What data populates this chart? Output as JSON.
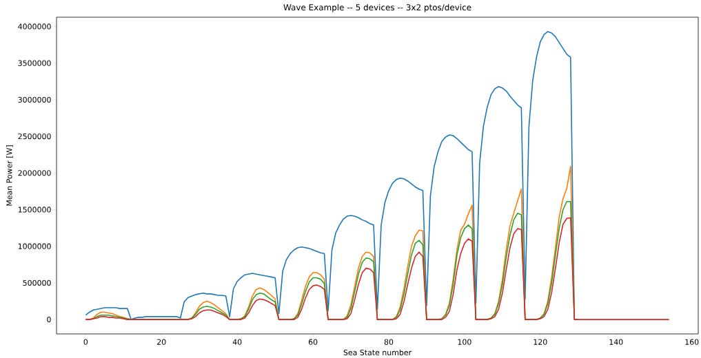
{
  "chart_data": {
    "type": "line",
    "title": "Wave Example -- 5 devices -- 3x2 ptos/device",
    "xlabel": "Sea State number",
    "ylabel": "Mean Power [W]",
    "x": [
      0,
      1,
      2,
      3,
      4,
      5,
      6,
      7,
      8,
      9,
      10,
      11,
      12,
      13,
      14,
      15,
      16,
      17,
      18,
      19,
      20,
      21,
      22,
      23,
      24,
      25,
      26,
      27,
      28,
      29,
      30,
      31,
      32,
      33,
      34,
      35,
      36,
      37,
      38,
      39,
      40,
      41,
      42,
      43,
      44,
      45,
      46,
      47,
      48,
      49,
      50,
      51,
      52,
      53,
      54,
      55,
      56,
      57,
      58,
      59,
      60,
      61,
      62,
      63,
      64,
      65,
      66,
      67,
      68,
      69,
      70,
      71,
      72,
      73,
      74,
      75,
      76,
      77,
      78,
      79,
      80,
      81,
      82,
      83,
      84,
      85,
      86,
      87,
      88,
      89,
      90,
      91,
      92,
      93,
      94,
      95,
      96,
      97,
      98,
      99,
      100,
      101,
      102,
      103,
      104,
      105,
      106,
      107,
      108,
      109,
      110,
      111,
      112,
      113,
      114,
      115,
      116,
      117,
      118,
      119,
      120,
      121,
      122,
      123,
      124,
      125,
      126,
      127,
      128,
      129,
      130,
      131,
      132,
      133,
      134,
      135,
      136,
      137,
      138,
      139,
      140,
      141,
      142,
      143,
      144,
      145,
      146,
      147,
      148,
      149,
      150,
      151,
      152,
      153,
      154
    ],
    "xlim": [
      -7.7,
      161.7
    ],
    "xticks": [
      0,
      20,
      40,
      60,
      80,
      100,
      120,
      140,
      160
    ],
    "ylim": [
      -196500,
      4126500
    ],
    "yticks": [
      0,
      500000,
      1000000,
      1500000,
      2000000,
      2500000,
      3000000,
      3500000,
      4000000
    ],
    "series": [
      {
        "color": "#1f77b4",
        "values": [
          60000,
          100000,
          130000,
          140000,
          150000,
          160000,
          160000,
          160000,
          160000,
          150000,
          150000,
          150000,
          0,
          20000,
          30000,
          30000,
          40000,
          40000,
          40000,
          40000,
          40000,
          40000,
          40000,
          40000,
          40000,
          20000,
          240000,
          300000,
          320000,
          340000,
          350000,
          360000,
          350000,
          350000,
          340000,
          330000,
          330000,
          320000,
          40000,
          420000,
          520000,
          570000,
          610000,
          620000,
          630000,
          620000,
          610000,
          600000,
          590000,
          580000,
          570000,
          80000,
          660000,
          820000,
          900000,
          950000,
          980000,
          990000,
          980000,
          970000,
          950000,
          930000,
          910000,
          900000,
          120000,
          950000,
          1180000,
          1290000,
          1370000,
          1410000,
          1420000,
          1410000,
          1390000,
          1360000,
          1340000,
          1310000,
          1290000,
          140000,
          1290000,
          1600000,
          1760000,
          1860000,
          1910000,
          1930000,
          1920000,
          1890000,
          1850000,
          1810000,
          1780000,
          1760000,
          190000,
          1690000,
          2090000,
          2290000,
          2430000,
          2490000,
          2520000,
          2510000,
          2470000,
          2420000,
          2370000,
          2320000,
          2290000,
          220000,
          2140000,
          2640000,
          2900000,
          3070000,
          3150000,
          3180000,
          3160000,
          3120000,
          3050000,
          2990000,
          2930000,
          2890000,
          280000,
          2630000,
          3260000,
          3580000,
          3790000,
          3890000,
          3930000,
          3910000,
          3860000,
          3780000,
          3700000,
          3620000,
          3580000,
          0,
          0,
          null,
          null,
          null,
          null,
          null,
          null,
          null,
          null,
          null,
          null,
          null,
          null,
          null,
          null,
          null,
          null,
          null,
          null,
          null,
          null,
          null,
          null,
          null,
          null
        ]
      },
      {
        "color": "#ff7f0e",
        "values": [
          0,
          0,
          20000,
          70000,
          100000,
          100000,
          90000,
          80000,
          60000,
          40000,
          30000,
          10000,
          0,
          0,
          0,
          0,
          0,
          0,
          0,
          0,
          0,
          0,
          0,
          0,
          0,
          0,
          0,
          0,
          20000,
          90000,
          180000,
          230000,
          250000,
          230000,
          200000,
          160000,
          120000,
          80000,
          0,
          0,
          0,
          10000,
          50000,
          170000,
          320000,
          410000,
          430000,
          410000,
          370000,
          330000,
          280000,
          0,
          0,
          0,
          0,
          10000,
          80000,
          260000,
          450000,
          580000,
          640000,
          640000,
          610000,
          550000,
          0,
          0,
          0,
          0,
          0,
          50000,
          200000,
          450000,
          700000,
          860000,
          920000,
          910000,
          860000,
          0,
          0,
          0,
          0,
          0,
          40000,
          170000,
          420000,
          720000,
          1000000,
          1140000,
          1220000,
          1210000,
          0,
          0,
          0,
          0,
          10000,
          70000,
          220000,
          550000,
          950000,
          1220000,
          1300000,
          1440000,
          1560000,
          0,
          0,
          0,
          0,
          20000,
          80000,
          250000,
          550000,
          950000,
          1280000,
          1450000,
          1620000,
          1780000,
          0,
          0,
          0,
          0,
          20000,
          80000,
          250000,
          580000,
          980000,
          1400000,
          1650000,
          1790000,
          2090000,
          0,
          null,
          null,
          null,
          null,
          null,
          null,
          null,
          null,
          null,
          null,
          null,
          null,
          null,
          null,
          null,
          null,
          null,
          null,
          null,
          null,
          null,
          null,
          null,
          null,
          null
        ]
      },
      {
        "color": "#2ca02c",
        "values": [
          0,
          0,
          10000,
          40000,
          60000,
          60000,
          60000,
          50000,
          40000,
          30000,
          20000,
          10000,
          0,
          0,
          0,
          0,
          0,
          0,
          0,
          0,
          0,
          0,
          0,
          0,
          0,
          0,
          0,
          0,
          20000,
          70000,
          140000,
          170000,
          180000,
          170000,
          150000,
          120000,
          90000,
          60000,
          0,
          0,
          0,
          10000,
          40000,
          140000,
          270000,
          340000,
          360000,
          350000,
          310000,
          270000,
          240000,
          0,
          0,
          0,
          0,
          10000,
          60000,
          210000,
          380000,
          510000,
          570000,
          570000,
          550000,
          490000,
          0,
          0,
          0,
          0,
          0,
          30000,
          150000,
          380000,
          620000,
          780000,
          840000,
          830000,
          790000,
          0,
          0,
          0,
          0,
          0,
          30000,
          130000,
          350000,
          620000,
          880000,
          1040000,
          1080000,
          1020000,
          0,
          0,
          0,
          0,
          10000,
          60000,
          190000,
          480000,
          880000,
          1120000,
          1240000,
          1290000,
          1240000,
          0,
          0,
          0,
          0,
          20000,
          70000,
          220000,
          480000,
          850000,
          1150000,
          1360000,
          1450000,
          1430000,
          0,
          0,
          0,
          0,
          20000,
          70000,
          220000,
          500000,
          880000,
          1250000,
          1500000,
          1610000,
          1610000,
          0,
          null,
          null,
          null,
          null,
          null,
          null,
          null,
          null,
          null,
          null,
          null,
          null,
          null,
          null,
          null,
          null,
          null,
          null,
          null,
          null,
          null,
          null,
          null,
          null,
          null
        ]
      },
      {
        "color": "#d62728",
        "values": [
          0,
          0,
          10000,
          20000,
          40000,
          40000,
          30000,
          30000,
          20000,
          20000,
          10000,
          0,
          0,
          0,
          0,
          0,
          0,
          0,
          0,
          0,
          0,
          0,
          0,
          0,
          0,
          0,
          0,
          0,
          10000,
          40000,
          90000,
          120000,
          130000,
          130000,
          110000,
          90000,
          70000,
          40000,
          0,
          0,
          0,
          0,
          20000,
          90000,
          190000,
          260000,
          280000,
          270000,
          250000,
          220000,
          190000,
          0,
          0,
          0,
          0,
          0,
          30000,
          140000,
          290000,
          410000,
          460000,
          470000,
          450000,
          410000,
          0,
          0,
          0,
          0,
          0,
          10000,
          80000,
          270000,
          480000,
          640000,
          700000,
          690000,
          640000,
          0,
          0,
          0,
          0,
          0,
          10000,
          70000,
          240000,
          480000,
          700000,
          860000,
          920000,
          860000,
          0,
          0,
          0,
          0,
          0,
          30000,
          110000,
          340000,
          680000,
          900000,
          1040000,
          1100000,
          1070000,
          0,
          0,
          0,
          0,
          10000,
          40000,
          140000,
          360000,
          680000,
          980000,
          1170000,
          1240000,
          1230000,
          0,
          0,
          0,
          0,
          10000,
          40000,
          140000,
          370000,
          700000,
          1050000,
          1300000,
          1380000,
          1390000,
          0,
          0,
          0,
          0,
          0,
          0,
          0,
          0,
          0,
          0,
          0,
          0,
          0,
          0,
          0,
          0,
          0,
          0,
          0,
          0,
          0,
          0,
          0,
          0,
          0,
          0
        ]
      }
    ]
  }
}
